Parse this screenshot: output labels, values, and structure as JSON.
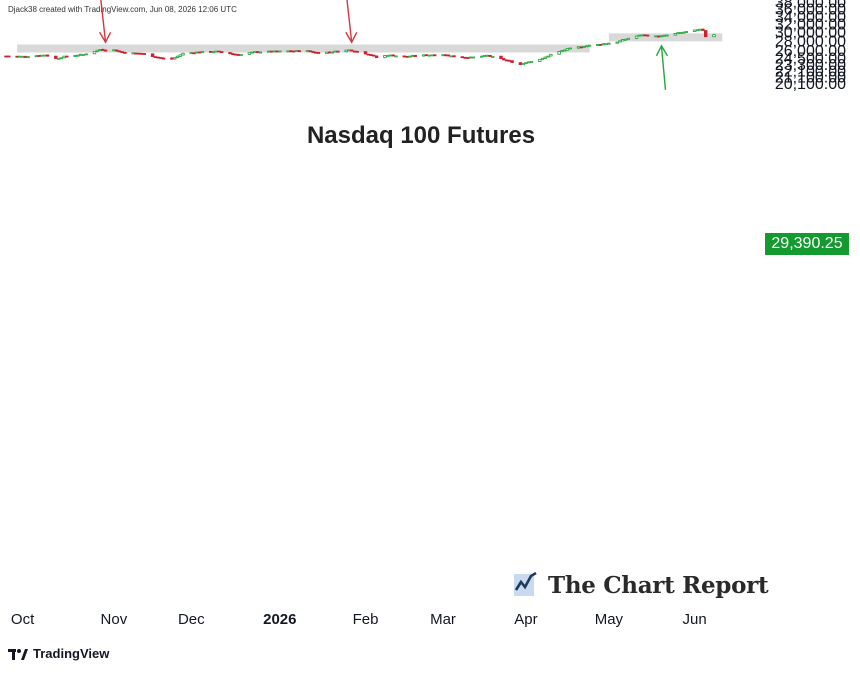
{
  "credit": "Djack38 created with TradingView.com, Jun 08, 2026 12:06 UTC",
  "watermark": "The Chart Report",
  "platform": "TradingView",
  "colors": {
    "up": "#22a33a",
    "down": "#d01f2f",
    "annotation_red": "#d6363f",
    "annotation_green": "#2aa43a",
    "support_band": "#d9d9d9",
    "price_label_bg": "#149a2e"
  },
  "chart_data": {
    "type": "candlestick",
    "title": "Nasdaq 100 Futures",
    "last_price": "29,390.25",
    "y_axis": {
      "scale": "log",
      "range": [
        19500,
        39000
      ],
      "ticks": [
        "38,000.00",
        "36,000.00",
        "34,000.00",
        "32,000.00",
        "30,000.00",
        "28,000.00",
        "26,000.00",
        "24,500.00",
        "23,300.00",
        "22,100.00",
        "21,100.00",
        "20,100.00"
      ],
      "tick_values": [
        38000,
        36000,
        34000,
        32000,
        30000,
        28000,
        26000,
        24500,
        23300,
        22100,
        21100,
        20100
      ]
    },
    "x_axis": {
      "ticks": [
        "Oct",
        "Nov",
        "Dec",
        "2026",
        "Feb",
        "Mar",
        "Apr",
        "May",
        "Jun"
      ],
      "bold_ticks": [
        "2026"
      ],
      "tick_dates": [
        "2025-10-01",
        "2025-11-03",
        "2025-12-01",
        "2026-01-02",
        "2026-02-02",
        "2026-03-02",
        "2026-04-01",
        "2026-05-01",
        "2026-06-01"
      ]
    },
    "annotations": [
      {
        "type": "horizontal_zone",
        "from": "2025-09-29",
        "to": "2026-04-24",
        "value": 26300,
        "label": ""
      },
      {
        "type": "horizontal_zone",
        "from": "2026-05-01",
        "to": "2026-06-11",
        "value": 28700,
        "label": ""
      },
      {
        "type": "arrow_down",
        "date": "2025-10-31",
        "value": 26350,
        "color": "red"
      },
      {
        "type": "arrow_down",
        "date": "2026-01-28",
        "value": 26350,
        "color": "red"
      },
      {
        "type": "arrow_up",
        "date": "2026-05-20",
        "value": 28600,
        "color": "green"
      }
    ],
    "waypoints": [
      [
        "2025-09-25",
        24800
      ],
      [
        "2025-10-02",
        24700
      ],
      [
        "2025-10-09",
        25000
      ],
      [
        "2025-10-13",
        24300
      ],
      [
        "2025-10-17",
        24800
      ],
      [
        "2025-10-23",
        25100
      ],
      [
        "2025-10-29",
        26100
      ],
      [
        "2025-11-03",
        26000
      ],
      [
        "2025-11-07",
        25400
      ],
      [
        "2025-11-13",
        25300
      ],
      [
        "2025-11-20",
        24400
      ],
      [
        "2025-11-24",
        24200
      ],
      [
        "2025-11-28",
        25300
      ],
      [
        "2025-12-04",
        25600
      ],
      [
        "2025-12-10",
        25700
      ],
      [
        "2025-12-15",
        25300
      ],
      [
        "2025-12-18",
        25000
      ],
      [
        "2025-12-24",
        25600
      ],
      [
        "2025-12-31",
        25700
      ],
      [
        "2026-01-06",
        25800
      ],
      [
        "2026-01-12",
        25800
      ],
      [
        "2026-01-16",
        25400
      ],
      [
        "2026-01-22",
        25700
      ],
      [
        "2026-01-27",
        26000
      ],
      [
        "2026-01-30",
        25700
      ],
      [
        "2026-02-04",
        25000
      ],
      [
        "2026-02-06",
        24500
      ],
      [
        "2026-02-10",
        25000
      ],
      [
        "2026-02-16",
        24700
      ],
      [
        "2026-02-24",
        25000
      ],
      [
        "2026-03-02",
        25100
      ],
      [
        "2026-03-06",
        24700
      ],
      [
        "2026-03-12",
        24500
      ],
      [
        "2026-03-18",
        24900
      ],
      [
        "2026-03-24",
        24100
      ],
      [
        "2026-03-30",
        23200
      ],
      [
        "2026-04-01",
        23600
      ],
      [
        "2026-04-07",
        24300
      ],
      [
        "2026-04-10",
        25100
      ],
      [
        "2026-04-16",
        26200
      ],
      [
        "2026-04-22",
        26800
      ],
      [
        "2026-04-28",
        27200
      ],
      [
        "2026-05-04",
        27700
      ],
      [
        "2026-05-08",
        28500
      ],
      [
        "2026-05-13",
        29300
      ],
      [
        "2026-05-15",
        29100
      ],
      [
        "2026-05-19",
        28900
      ],
      [
        "2026-05-22",
        29200
      ],
      [
        "2026-05-28",
        29900
      ],
      [
        "2026-06-02",
        30400
      ],
      [
        "2026-06-03",
        30500
      ],
      [
        "2026-06-04",
        30350
      ],
      [
        "2026-06-05",
        28900
      ],
      [
        "2026-06-08",
        29390
      ]
    ]
  }
}
